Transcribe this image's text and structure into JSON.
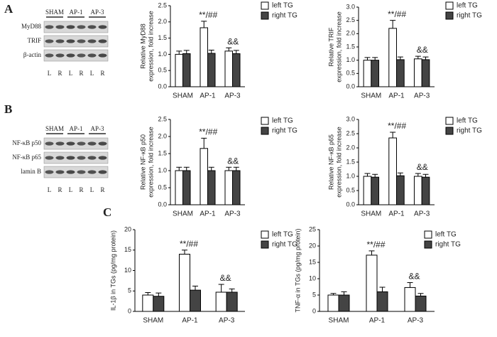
{
  "panels": [
    "A",
    "B",
    "C"
  ],
  "blots": [
    {
      "groups": [
        "SHAM",
        "AP-1",
        "AP-3"
      ],
      "rows": [
        "MyD88",
        "TRIF",
        "β-actin"
      ],
      "lanes": [
        "L",
        "R",
        "L",
        "R",
        "L",
        "R"
      ]
    },
    {
      "groups": [
        "SHAM",
        "AP-1",
        "AP-3"
      ],
      "rows": [
        "NF-κB p50",
        "NF-κB p65",
        "lamin B"
      ],
      "lanes": [
        "L",
        "R",
        "L",
        "R",
        "L",
        "R"
      ]
    }
  ],
  "chart_data": [
    {
      "type": "bar",
      "ylabel": [
        "Relative MyD88",
        "expression, fold increase"
      ],
      "categories": [
        "SHAM",
        "AP-1",
        "AP-3"
      ],
      "series": [
        {
          "name": "left TG",
          "color": "#ffffff",
          "values": [
            1.0,
            1.82,
            1.1
          ],
          "errors": [
            0.1,
            0.2,
            0.1
          ],
          "annotations": [
            null,
            "**/##",
            "&&"
          ]
        },
        {
          "name": "right TG",
          "color": "#444444",
          "values": [
            1.02,
            1.03,
            1.02
          ],
          "errors": [
            0.1,
            0.1,
            0.1
          ]
        }
      ],
      "ylim": [
        0,
        2.5
      ],
      "yticks": [
        {
          "value": 0,
          "label": "0.0"
        },
        {
          "value": 0.5,
          "label": "0.5"
        },
        {
          "value": 1,
          "label": "1.0"
        },
        {
          "value": 1.5,
          "label": "1.5"
        },
        {
          "value": 2,
          "label": "2.0"
        },
        {
          "value": 2.5,
          "label": "2.5"
        }
      ]
    },
    {
      "type": "bar",
      "ylabel": [
        "Relative TRIF",
        "expression, fold increase"
      ],
      "categories": [
        "SHAM",
        "AP-1",
        "AP-3"
      ],
      "series": [
        {
          "name": "left TG",
          "color": "#ffffff",
          "values": [
            1.0,
            2.2,
            1.05
          ],
          "errors": [
            0.1,
            0.3,
            0.1
          ],
          "annotations": [
            null,
            "**/##",
            "&&"
          ]
        },
        {
          "name": "right TG",
          "color": "#444444",
          "values": [
            1.0,
            1.02,
            1.02
          ],
          "errors": [
            0.1,
            0.1,
            0.1
          ]
        }
      ],
      "ylim": [
        0,
        3
      ],
      "yticks": [
        {
          "value": 0,
          "label": "0.0"
        },
        {
          "value": 0.5,
          "label": "0.5"
        },
        {
          "value": 1,
          "label": "1.0"
        },
        {
          "value": 1.5,
          "label": "1.5"
        },
        {
          "value": 2,
          "label": "2.0"
        },
        {
          "value": 2.5,
          "label": "2.5"
        },
        {
          "value": 3,
          "label": "3.0"
        }
      ]
    },
    {
      "type": "bar",
      "ylabel": [
        "Relative NF-κB p50",
        "expression, fold increase"
      ],
      "categories": [
        "SHAM",
        "AP-1",
        "AP-3"
      ],
      "series": [
        {
          "name": "left TG",
          "color": "#ffffff",
          "values": [
            1.0,
            1.65,
            1.0
          ],
          "errors": [
            0.1,
            0.3,
            0.1
          ],
          "annotations": [
            null,
            "**/##",
            "&&"
          ]
        },
        {
          "name": "right TG",
          "color": "#444444",
          "values": [
            1.0,
            1.0,
            1.0
          ],
          "errors": [
            0.1,
            0.1,
            0.1
          ]
        }
      ],
      "ylim": [
        0,
        2.5
      ],
      "yticks": [
        {
          "value": 0,
          "label": "0.0"
        },
        {
          "value": 0.5,
          "label": "0.5"
        },
        {
          "value": 1,
          "label": "1.0"
        },
        {
          "value": 1.5,
          "label": "1.5"
        },
        {
          "value": 2,
          "label": "2.0"
        },
        {
          "value": 2.5,
          "label": "2.5"
        }
      ]
    },
    {
      "type": "bar",
      "ylabel": [
        "Relative NF-κB p65",
        "expression, fold increase"
      ],
      "categories": [
        "SHAM",
        "AP-1",
        "AP-3"
      ],
      "series": [
        {
          "name": "left TG",
          "color": "#ffffff",
          "values": [
            1.0,
            2.35,
            1.0
          ],
          "errors": [
            0.1,
            0.2,
            0.1
          ],
          "annotations": [
            null,
            "**/##",
            "&&"
          ]
        },
        {
          "name": "right TG",
          "color": "#444444",
          "values": [
            0.97,
            1.02,
            0.97
          ],
          "errors": [
            0.1,
            0.1,
            0.1
          ]
        }
      ],
      "ylim": [
        0,
        3
      ],
      "yticks": [
        {
          "value": 0,
          "label": "0.0"
        },
        {
          "value": 0.5,
          "label": "0.5"
        },
        {
          "value": 1,
          "label": "1.0"
        },
        {
          "value": 1.5,
          "label": "1.5"
        },
        {
          "value": 2,
          "label": "2.0"
        },
        {
          "value": 2.5,
          "label": "2.5"
        },
        {
          "value": 3,
          "label": "3.0"
        }
      ]
    },
    {
      "type": "bar",
      "ylabel": [
        "IL-1β in TGs (pg/mg protein)"
      ],
      "categories": [
        "SHAM",
        "AP-1",
        "AP-3"
      ],
      "series": [
        {
          "name": "left TG",
          "color": "#ffffff",
          "values": [
            4.0,
            14.0,
            4.7
          ],
          "errors": [
            0.6,
            1.0,
            1.9
          ],
          "annotations": [
            null,
            "**/##",
            "&&"
          ]
        },
        {
          "name": "right TG",
          "color": "#444444",
          "values": [
            3.7,
            5.2,
            4.7
          ],
          "errors": [
            0.8,
            1.0,
            0.8
          ]
        }
      ],
      "ylim": [
        0,
        20
      ],
      "yticks": [
        0,
        5,
        10,
        15,
        20
      ]
    },
    {
      "type": "bar",
      "ylabel": [
        "TNF-α in TGs (pg/mg protein)"
      ],
      "categories": [
        "SHAM",
        "AP-1",
        "AP-3"
      ],
      "series": [
        {
          "name": "left TG",
          "color": "#ffffff",
          "values": [
            5.0,
            17.2,
            7.3
          ],
          "errors": [
            0.5,
            1.3,
            1.5
          ],
          "annotations": [
            null,
            "**/##",
            "&&"
          ]
        },
        {
          "name": "right TG",
          "color": "#444444",
          "values": [
            5.0,
            6.0,
            4.7
          ],
          "errors": [
            1.0,
            1.4,
            0.8
          ]
        }
      ],
      "ylim": [
        0,
        25
      ],
      "yticks": [
        0,
        5,
        10,
        15,
        20,
        25
      ]
    }
  ]
}
